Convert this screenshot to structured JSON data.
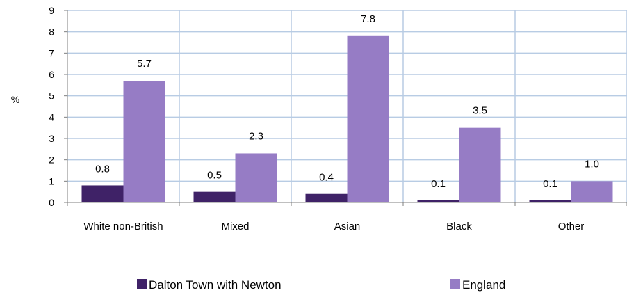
{
  "chart_data": {
    "type": "bar",
    "categories": [
      "White non-British",
      "Mixed",
      "Asian",
      "Black",
      "Other"
    ],
    "series": [
      {
        "name": "Dalton Town with Newton",
        "values": [
          0.8,
          0.5,
          0.4,
          0.1,
          0.1
        ],
        "color": "#3f2267"
      },
      {
        "name": "England",
        "values": [
          5.7,
          2.3,
          7.8,
          3.5,
          1.0
        ],
        "color": "#967cc5"
      }
    ],
    "data_labels": [
      [
        "0.8",
        "0.5",
        "0.4",
        "0.1",
        "0.1"
      ],
      [
        "5.7",
        "2.3",
        "7.8",
        "3.5",
        "1.0"
      ]
    ],
    "ylabel": "%",
    "ylim": [
      0,
      9
    ],
    "yticks": [
      0,
      1,
      2,
      3,
      4,
      5,
      6,
      7,
      8,
      9
    ],
    "grid": true,
    "legend": "bottom",
    "colors": {
      "grid": "#b8cce4",
      "axis": "#7f7f7f"
    }
  }
}
